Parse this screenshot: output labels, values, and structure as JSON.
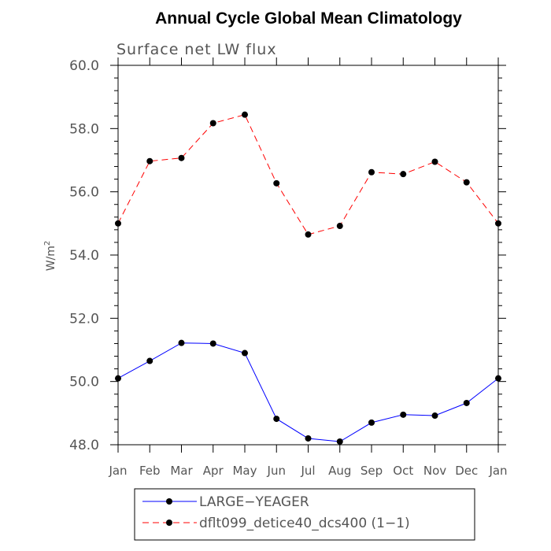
{
  "chart_data": {
    "type": "line",
    "title": "Annual Cycle Global Mean Climatology",
    "subtitle": "Surface net LW flux",
    "ylabel": "W/m",
    "ylabel_superscript": "2",
    "xlabel": "",
    "categories": [
      "Jan",
      "Feb",
      "Mar",
      "Apr",
      "May",
      "Jun",
      "Jul",
      "Aug",
      "Sep",
      "Oct",
      "Nov",
      "Dec",
      "Jan"
    ],
    "ylim": [
      48.0,
      60.0
    ],
    "yticks": [
      "48.0",
      "50.0",
      "52.0",
      "54.0",
      "56.0",
      "58.0",
      "60.0"
    ],
    "grid": false,
    "legend_position": "bottom",
    "series": [
      {
        "name": "LARGE−YEAGER",
        "color": "#0000ff",
        "dash": "solid",
        "values": [
          50.1,
          50.65,
          51.22,
          51.2,
          50.9,
          48.82,
          48.2,
          48.1,
          48.7,
          48.95,
          48.92,
          49.32,
          50.1
        ]
      },
      {
        "name": "dflt099_detice40_dcs400 (1−1)",
        "color": "#ff0000",
        "dash": "dashed",
        "values": [
          55.0,
          56.97,
          57.07,
          58.17,
          58.44,
          56.27,
          54.65,
          54.92,
          56.62,
          56.56,
          56.95,
          56.3,
          55.0
        ]
      }
    ]
  }
}
